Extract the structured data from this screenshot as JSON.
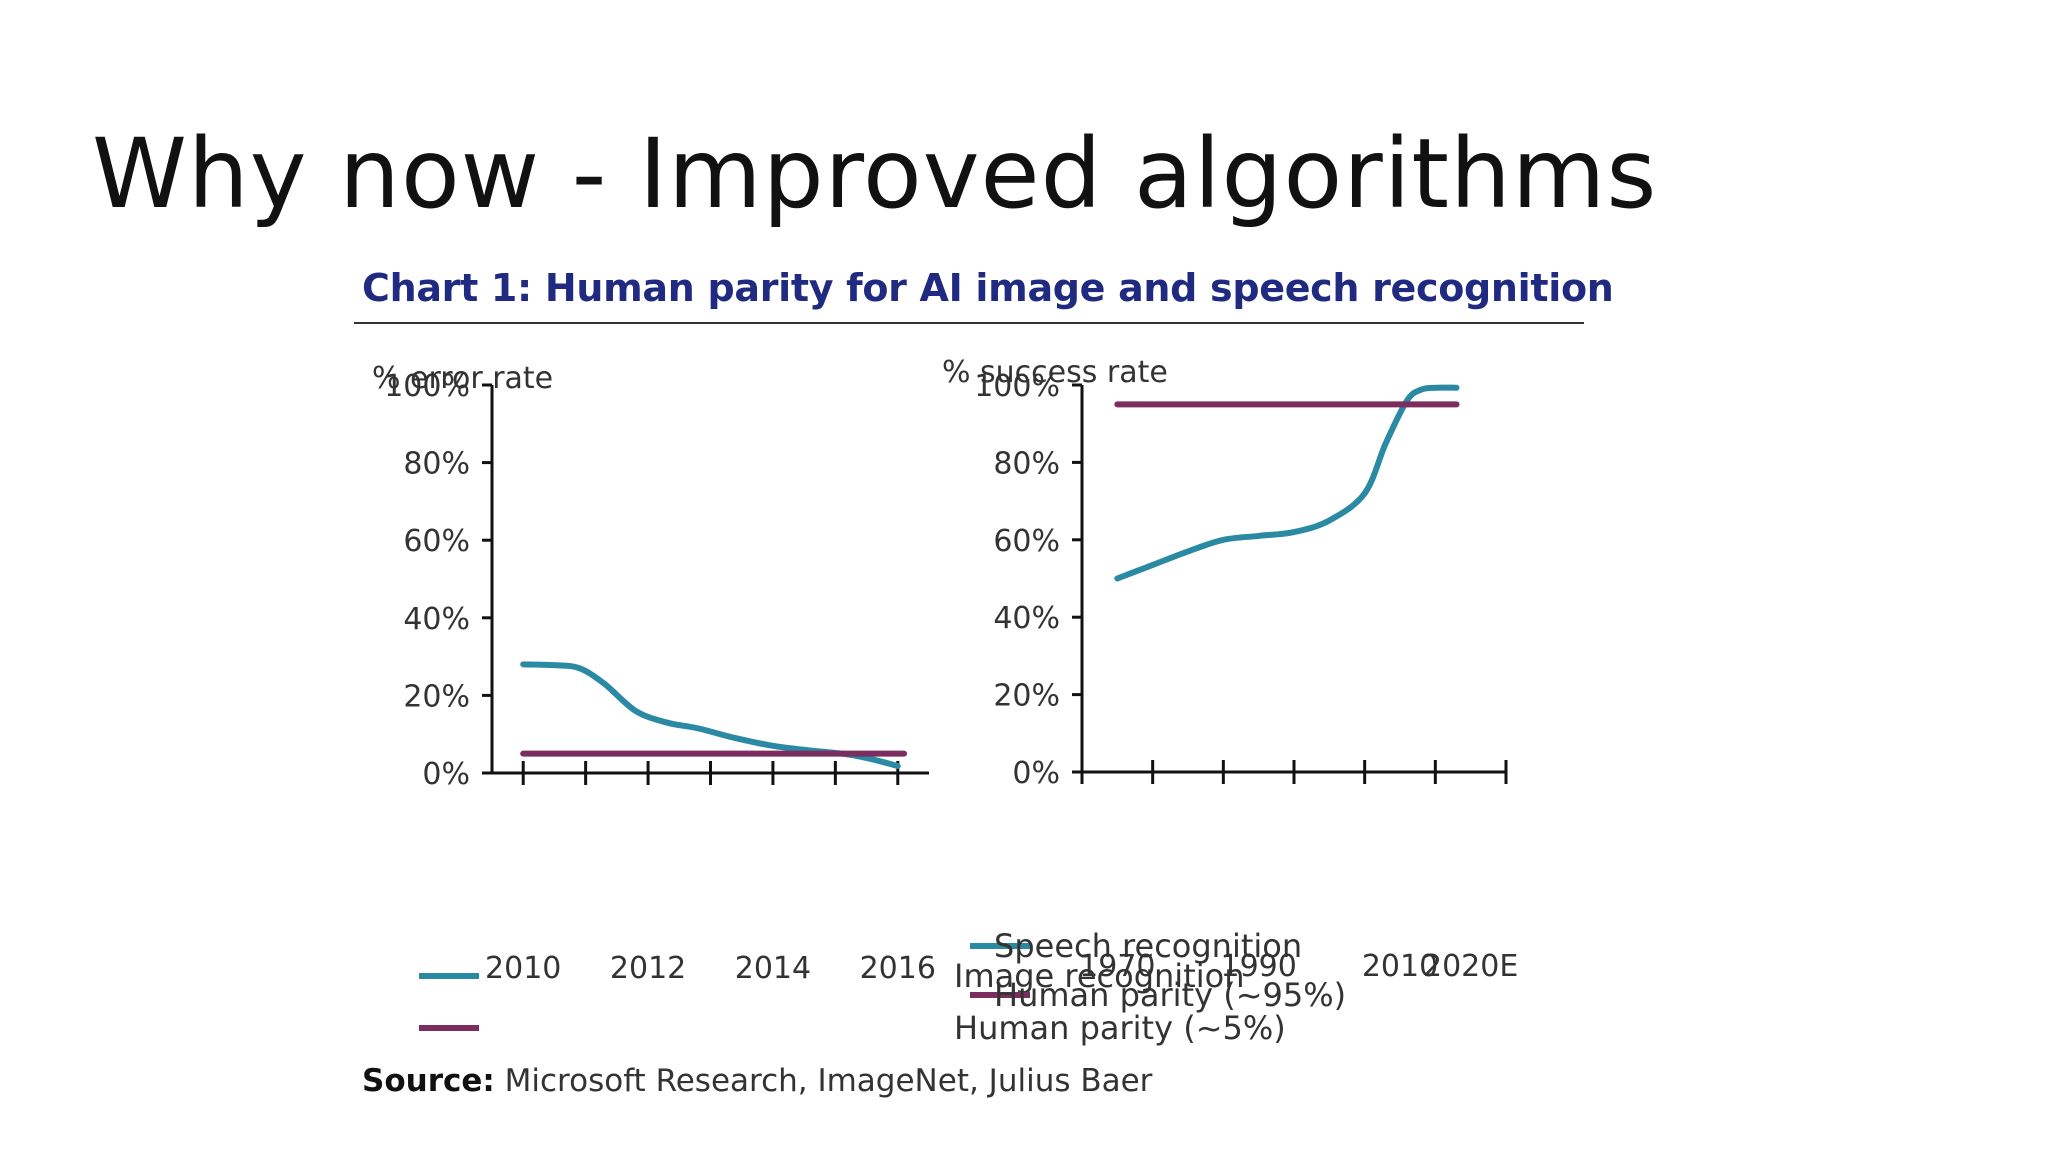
{
  "slide": {
    "title": "Why now - Improved algorithms"
  },
  "figure": {
    "heading": "Chart 1: Human parity for AI image and speech recognition",
    "source_label": "Source:",
    "source_text": "Microsoft Research, ImageNet, Julius Baer"
  },
  "colors": {
    "recognition": "#2b8aa3",
    "parity": "#7a2d5e",
    "heading": "#1f2a80"
  },
  "chart_data": [
    {
      "type": "line",
      "unit_label": "% error rate",
      "x_ticks": [
        2010,
        2011,
        2012,
        2013,
        2014,
        2015,
        2016
      ],
      "x_tick_labels": [
        "2010",
        "2012",
        "2014",
        "2016"
      ],
      "x_range": [
        2009.5,
        2016.5
      ],
      "y_ticks": [
        0,
        20,
        40,
        60,
        80,
        100
      ],
      "y_tick_labels": [
        "0%",
        "20%",
        "40%",
        "60%",
        "80%",
        "100%"
      ],
      "ylim": [
        0,
        100
      ],
      "legend_position": "bottom",
      "series": [
        {
          "name": "Image recognition",
          "color_key": "recognition",
          "x": [
            2010,
            2010.5,
            2010.9,
            2011.3,
            2011.8,
            2012.3,
            2012.8,
            2013.4,
            2014.0,
            2014.6,
            2015.2,
            2015.6,
            2016.0
          ],
          "y": [
            28,
            27.8,
            27,
            23,
            16,
            13,
            11.5,
            9,
            7,
            5.8,
            4.8,
            3.5,
            1.8
          ]
        },
        {
          "name": "Human parity (~5%)",
          "color_key": "parity",
          "x": [
            2010,
            2016.1
          ],
          "y": [
            5,
            5
          ]
        }
      ]
    },
    {
      "type": "line",
      "unit_label": "% success rate",
      "x_ticks": [
        1970,
        1980,
        1990,
        2000,
        2010,
        2020,
        2030
      ],
      "x_tick_labels": [
        "1970",
        "1990",
        "2010",
        "2020E"
      ],
      "x_tick_label_positions": [
        1975,
        1995,
        2015,
        2025
      ],
      "x_range": [
        1970,
        2030
      ],
      "y_ticks": [
        0,
        20,
        40,
        60,
        80,
        100
      ],
      "y_tick_labels": [
        "0%",
        "20%",
        "40%",
        "60%",
        "80%",
        "100%"
      ],
      "ylim": [
        0,
        100
      ],
      "legend_position": "bottom",
      "series": [
        {
          "name": "Speech recognition",
          "color_key": "recognition",
          "x": [
            1975,
            1980,
            1985,
            1990,
            1995,
            2000,
            2005,
            2010,
            2013,
            2016,
            2018,
            2020,
            2023
          ],
          "y": [
            50,
            53.5,
            57,
            60,
            61,
            62,
            65,
            72,
            85,
            96,
            98.8,
            99.3,
            99.3
          ],
          "labels_shown": false
        },
        {
          "name": "Human parity (~95%)",
          "color_key": "parity",
          "x": [
            1975,
            2023
          ],
          "y": [
            95,
            95
          ]
        }
      ]
    }
  ]
}
